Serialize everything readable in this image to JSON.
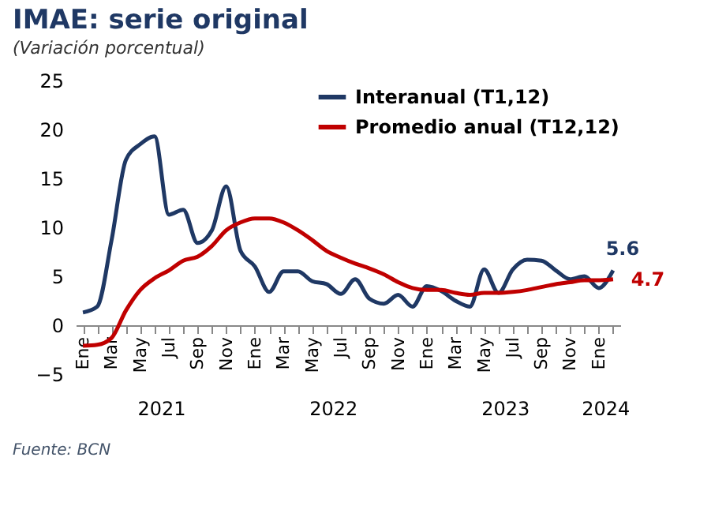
{
  "chart_data": {
    "type": "line",
    "title": "IMAE: serie original",
    "subtitle": "(Variación porcentual)",
    "categories": [
      "Ene",
      null,
      "Mar",
      null,
      "May",
      null,
      "Jul",
      null,
      "Sep",
      null,
      "Nov",
      null,
      "Ene",
      null,
      "Mar",
      null,
      "May",
      null,
      "Jul",
      null,
      "Sep",
      null,
      "Nov",
      null,
      "Ene",
      null,
      "Mar",
      null,
      "May",
      null,
      "Jul",
      null,
      "Sep",
      null,
      "Nov",
      null,
      "Ene",
      null
    ],
    "series": [
      {
        "name": "Interanual (T1,12)",
        "color": "#1f3864",
        "values": [
          1.3,
          1.9,
          8.7,
          16.9,
          18.5,
          19.3,
          11.3,
          11.8,
          8.4,
          9.7,
          14.2,
          7.6,
          6.0,
          3.4,
          5.5,
          5.5,
          4.5,
          4.2,
          3.2,
          4.7,
          2.7,
          2.2,
          3.1,
          1.9,
          4.0,
          3.5,
          2.5,
          1.9,
          5.7,
          3.3,
          5.7,
          6.7,
          6.6,
          5.6,
          4.7,
          5.0,
          3.8,
          5.6
        ],
        "value_labels": [
          null,
          null,
          null,
          null,
          null,
          null,
          null,
          null,
          null,
          null,
          null,
          null,
          null,
          null,
          null,
          null,
          null,
          null,
          null,
          null,
          null,
          null,
          null,
          null,
          null,
          null,
          null,
          null,
          null,
          null,
          null,
          null,
          null,
          null,
          null,
          null,
          null,
          "5.6"
        ]
      },
      {
        "name": "Promedio anual (T12,12)",
        "color": "#c00000",
        "values": [
          -2.1,
          -2.0,
          -1.3,
          1.5,
          3.6,
          4.8,
          5.6,
          6.6,
          7.0,
          8.1,
          9.7,
          10.5,
          10.9,
          10.9,
          10.5,
          9.7,
          8.7,
          7.6,
          6.9,
          6.3,
          5.8,
          5.2,
          4.4,
          3.8,
          3.6,
          3.6,
          3.3,
          3.1,
          3.3,
          3.3,
          3.4,
          3.6,
          3.9,
          4.2,
          4.4,
          4.6,
          4.6,
          4.7
        ],
        "value_labels": [
          null,
          null,
          null,
          null,
          null,
          null,
          null,
          null,
          null,
          null,
          null,
          null,
          null,
          null,
          null,
          null,
          null,
          null,
          null,
          null,
          null,
          null,
          null,
          null,
          null,
          null,
          null,
          null,
          null,
          null,
          null,
          null,
          null,
          null,
          null,
          null,
          null,
          "4.7"
        ]
      }
    ],
    "ylim": [
      -5,
      25
    ],
    "yticks": [
      -5,
      0,
      5,
      10,
      15,
      20,
      25
    ],
    "grid": false,
    "legend": "top right",
    "line_style": "solid",
    "marker": "none",
    "annotations": [
      "2021",
      "2022",
      "2023",
      "2024",
      "Fuente: BCN"
    ]
  }
}
